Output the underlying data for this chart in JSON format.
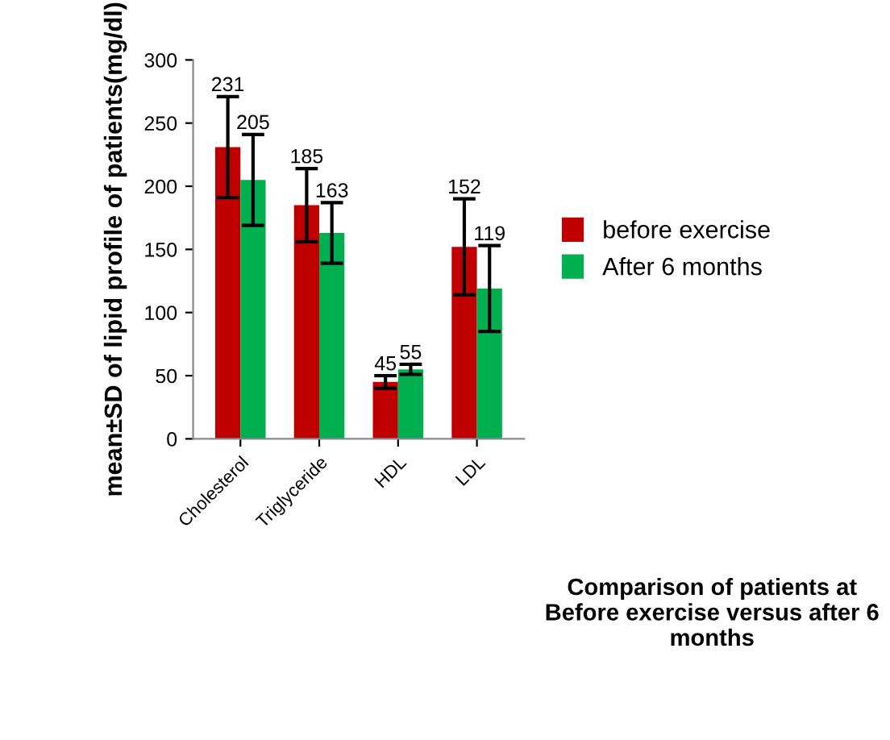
{
  "chart_data": {
    "type": "bar",
    "annotations": [
      "Comparison of patients at Before exercise versus after 6 months"
    ],
    "ylabel": "mean±SD of lipid profile of patients(mg/dl)",
    "categories": [
      "Cholesterol",
      "Triglyceride",
      "HDL",
      "LDL"
    ],
    "series": [
      {
        "name": "before exercise",
        "color": "#c00000",
        "values": [
          231,
          185,
          45,
          152
        ],
        "errors": [
          40,
          29,
          5,
          38
        ]
      },
      {
        "name": "After 6 months",
        "color": "#00b050",
        "values": [
          205,
          163,
          55,
          119
        ],
        "errors": [
          36,
          24,
          4,
          34
        ]
      }
    ],
    "ylim": [
      0,
      300
    ],
    "yticks": [
      0,
      50,
      100,
      150,
      200,
      250,
      300
    ],
    "data_labels": true,
    "grid": false,
    "legend": "right"
  }
}
